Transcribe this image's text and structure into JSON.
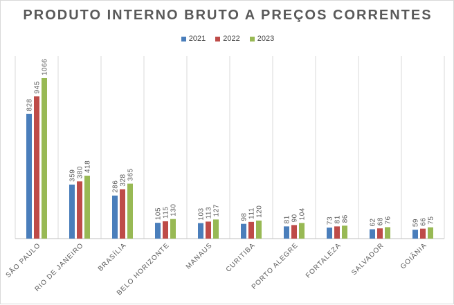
{
  "chart_data": {
    "type": "bar",
    "title": "PRODUTO INTERNO BRUTO A PREÇOS CORRENTES",
    "categories": [
      "SÃO PAULO",
      "RIO DE JANEIRO",
      "BRASÍLIA",
      "BELO HORIZONTE",
      "MANAUS",
      "CURITIBA",
      "PORTO ALEGRE",
      "FORTALEZA",
      "SALVADOR",
      "GOIÂNIA"
    ],
    "series": [
      {
        "name": "2021",
        "color": "#4a7ebb",
        "values": [
          828,
          359,
          286,
          105,
          103,
          98,
          81,
          73,
          62,
          59
        ]
      },
      {
        "name": "2022",
        "color": "#be4b48",
        "values": [
          945,
          380,
          328,
          115,
          113,
          111,
          90,
          81,
          68,
          66
        ]
      },
      {
        "name": "2023",
        "color": "#98b954",
        "values": [
          1066,
          418,
          365,
          130,
          127,
          120,
          104,
          86,
          76,
          75
        ]
      }
    ],
    "ylim": [
      0,
      1066
    ],
    "legend_position": "top-center",
    "grid": false,
    "data_labels": true
  }
}
